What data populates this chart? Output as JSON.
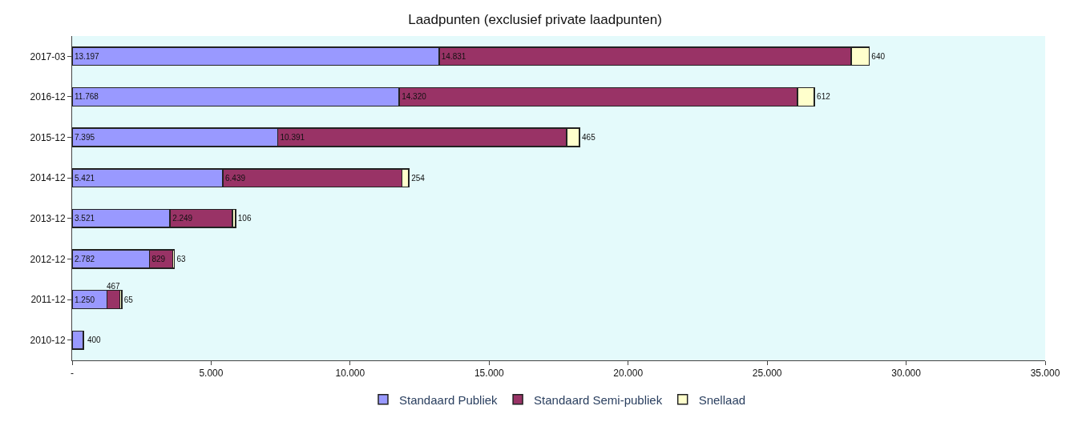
{
  "chart_data": {
    "type": "bar",
    "orientation": "horizontal",
    "stacked": true,
    "title": "Laadpunten (exclusief private laadpunten)",
    "categories": [
      "2017-03",
      "2016-12",
      "2015-12",
      "2014-12",
      "2013-12",
      "2012-12",
      "2011-12",
      "2010-12"
    ],
    "series": [
      {
        "name": "Standaard Publiek",
        "color": "#9999ff",
        "values": [
          13197,
          11768,
          7395,
          5421,
          3521,
          2782,
          1250,
          400
        ],
        "value_labels": [
          "13.197",
          "11.768",
          "7.395",
          "5.421",
          "3.521",
          "2.782",
          "1.250",
          "400"
        ]
      },
      {
        "name": "Standaard Semi-publiek",
        "color": "#993366",
        "values": [
          14831,
          14320,
          10391,
          6439,
          2249,
          829,
          467,
          null
        ],
        "value_labels": [
          "14.831",
          "14.320",
          "10.391",
          "6.439",
          "2.249",
          "829",
          "467",
          null
        ]
      },
      {
        "name": "Snellaad",
        "color": "#ffffcc",
        "values": [
          640,
          612,
          465,
          254,
          106,
          63,
          65,
          null
        ],
        "value_labels": [
          "640",
          "612",
          "465",
          "254",
          "106",
          "63",
          "65",
          null
        ]
      }
    ],
    "xlim": [
      0,
      35000
    ],
    "xticks": [
      {
        "value": 0,
        "label": "-"
      },
      {
        "value": 5000,
        "label": "5.000"
      },
      {
        "value": 10000,
        "label": "10.000"
      },
      {
        "value": 15000,
        "label": "15.000"
      },
      {
        "value": 20000,
        "label": "20.000"
      },
      {
        "value": 25000,
        "label": "25.000"
      },
      {
        "value": 30000,
        "label": "30.000"
      },
      {
        "value": 35000,
        "label": "35.000"
      }
    ],
    "grid": false,
    "legend": "bottom"
  }
}
